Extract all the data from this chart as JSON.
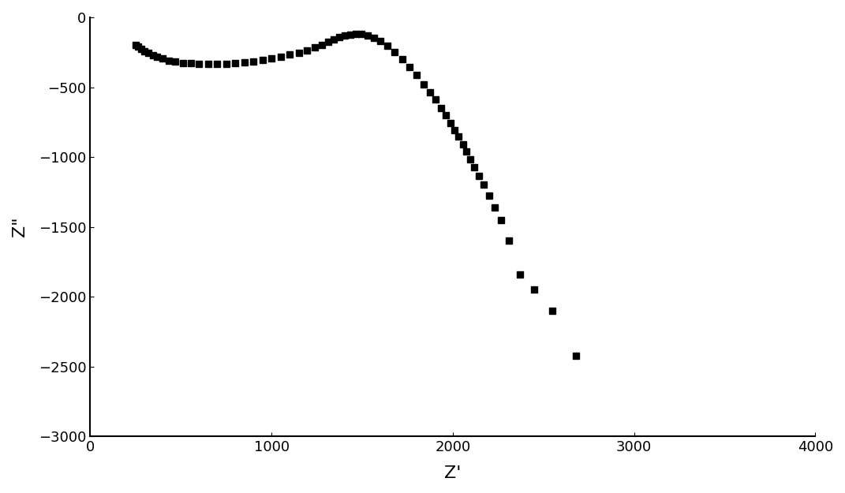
{
  "title": "",
  "xlabel": "Z'",
  "ylabel": "Z\"",
  "xlim": [
    0,
    4000
  ],
  "ylim": [
    -3000,
    0
  ],
  "xticks": [
    0,
    1000,
    2000,
    3000,
    4000
  ],
  "yticks": [
    0,
    -500,
    -1000,
    -1500,
    -2000,
    -2500,
    -3000
  ],
  "marker": "s",
  "marker_color": "#000000",
  "marker_size": 6,
  "background_color": "#ffffff",
  "data_x": [
    250,
    265,
    280,
    300,
    320,
    345,
    370,
    400,
    435,
    470,
    510,
    555,
    600,
    650,
    700,
    750,
    800,
    850,
    900,
    950,
    1000,
    1050,
    1100,
    1150,
    1195,
    1240,
    1280,
    1315,
    1345,
    1375,
    1405,
    1435,
    1465,
    1495,
    1530,
    1565,
    1600,
    1640,
    1680,
    1720,
    1760,
    1800,
    1840,
    1875,
    1905,
    1935,
    1962,
    1988,
    2010,
    2032,
    2055,
    2075,
    2098,
    2120,
    2145,
    2170,
    2200,
    2230,
    2265,
    2310,
    2370,
    2450,
    2550,
    2680
  ],
  "data_y": [
    -200,
    -210,
    -225,
    -240,
    -255,
    -270,
    -283,
    -295,
    -308,
    -318,
    -325,
    -330,
    -333,
    -335,
    -335,
    -333,
    -328,
    -322,
    -315,
    -306,
    -295,
    -282,
    -268,
    -252,
    -235,
    -215,
    -195,
    -175,
    -157,
    -142,
    -130,
    -122,
    -118,
    -120,
    -130,
    -148,
    -172,
    -205,
    -248,
    -298,
    -355,
    -415,
    -478,
    -535,
    -590,
    -648,
    -700,
    -755,
    -805,
    -855,
    -910,
    -960,
    -1015,
    -1075,
    -1135,
    -1200,
    -1275,
    -1360,
    -1450,
    -1600,
    -1840,
    -1950,
    -2100,
    -2420
  ]
}
